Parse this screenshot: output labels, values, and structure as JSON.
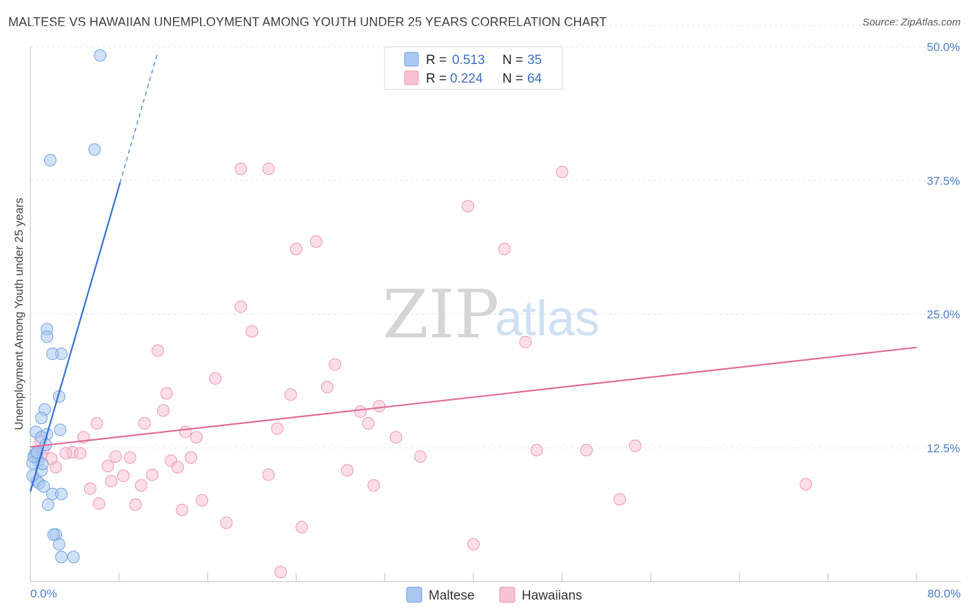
{
  "header": {
    "title": "MALTESE VS HAWAIIAN UNEMPLOYMENT AMONG YOUTH UNDER 25 YEARS CORRELATION CHART",
    "source": "Source: ZipAtlas.com"
  },
  "watermark": {
    "zip": "ZIP",
    "atlas": "atlas"
  },
  "colors": {
    "maltese_fill": "#a9c8f0",
    "maltese_stroke": "#6e9fe0",
    "maltese_line": "#2e6fd6",
    "hawaiians_fill": "#f7c2d2",
    "hawaiians_stroke": "#eb95b3",
    "hawaiians_line": "#e06b96",
    "grid": "#e3e3e3",
    "axis_text": "#4a7cc9"
  },
  "legend": {
    "r_label": "R =",
    "n_label": "N =",
    "maltese": {
      "r": "0.513",
      "n": "35"
    },
    "hawaiians": {
      "r": "0.224",
      "n": "64"
    }
  },
  "bottom_legend": {
    "maltese": "Maltese",
    "hawaiians": "Hawaiians"
  },
  "chart_data": {
    "type": "scatter",
    "title": "MALTESE VS HAWAIIAN UNEMPLOYMENT AMONG YOUTH UNDER 25 YEARS CORRELATION CHART",
    "xlabel": "",
    "ylabel": "Unemployment Among Youth under 25 years",
    "xlim": [
      0,
      80
    ],
    "ylim": [
      0,
      52
    ],
    "x_tick_labels": [
      "0.0%",
      "80.0%"
    ],
    "y_ticks": [
      12.5,
      25.0,
      37.5,
      50.0
    ],
    "y_tick_labels": [
      "12.5%",
      "25.0%",
      "37.5%",
      "50.0%"
    ],
    "grid": true,
    "legend_position": "top-center",
    "series": [
      {
        "name": "Maltese",
        "r": 0.513,
        "n": 35,
        "trend": {
          "x0": 0.0,
          "y0": 8.4,
          "x1": 8.1,
          "y1": 37.3,
          "dash_x1": 11.5,
          "dash_y1": 49.5
        },
        "points": [
          [
            6.3,
            49.2
          ],
          [
            5.8,
            40.4
          ],
          [
            1.8,
            39.4
          ],
          [
            1.5,
            23.6
          ],
          [
            1.5,
            22.9
          ],
          [
            2.8,
            21.3
          ],
          [
            2.0,
            21.3
          ],
          [
            2.6,
            17.3
          ],
          [
            1.3,
            16.1
          ],
          [
            1.0,
            15.3
          ],
          [
            2.7,
            14.2
          ],
          [
            0.5,
            14.0
          ],
          [
            1.5,
            13.8
          ],
          [
            1.0,
            13.5
          ],
          [
            1.4,
            12.8
          ],
          [
            0.5,
            12.0
          ],
          [
            0.4,
            11.9
          ],
          [
            0.7,
            11.3
          ],
          [
            0.2,
            11.1
          ],
          [
            1.0,
            10.4
          ],
          [
            0.6,
            9.4
          ],
          [
            0.8,
            9.2
          ],
          [
            1.2,
            8.9
          ],
          [
            2.0,
            8.2
          ],
          [
            2.8,
            8.2
          ],
          [
            1.6,
            7.2
          ],
          [
            2.3,
            4.4
          ],
          [
            2.1,
            4.4
          ],
          [
            2.6,
            3.5
          ],
          [
            2.8,
            2.3
          ],
          [
            3.9,
            2.3
          ],
          [
            0.3,
            11.7
          ],
          [
            0.2,
            9.9
          ],
          [
            0.6,
            12.1
          ],
          [
            1.1,
            11.0
          ]
        ]
      },
      {
        "name": "Hawaiians",
        "r": 0.224,
        "n": 64,
        "trend": {
          "x0": 0.0,
          "y0": 12.6,
          "x1": 80.0,
          "y1": 21.9
        },
        "points": [
          [
            19.0,
            38.6
          ],
          [
            21.5,
            38.6
          ],
          [
            48.0,
            38.3
          ],
          [
            39.5,
            35.1
          ],
          [
            25.8,
            31.8
          ],
          [
            24.0,
            31.1
          ],
          [
            42.8,
            31.1
          ],
          [
            19.0,
            25.7
          ],
          [
            20.0,
            23.4
          ],
          [
            44.7,
            22.4
          ],
          [
            11.5,
            21.6
          ],
          [
            27.5,
            20.3
          ],
          [
            16.7,
            19.0
          ],
          [
            26.8,
            18.2
          ],
          [
            12.3,
            17.6
          ],
          [
            23.5,
            17.5
          ],
          [
            31.5,
            16.4
          ],
          [
            12.0,
            16.0
          ],
          [
            29.8,
            15.9
          ],
          [
            10.3,
            14.8
          ],
          [
            6.0,
            14.8
          ],
          [
            30.5,
            14.8
          ],
          [
            22.3,
            14.3
          ],
          [
            14.0,
            14.0
          ],
          [
            4.8,
            13.5
          ],
          [
            15.0,
            13.5
          ],
          [
            33.0,
            13.5
          ],
          [
            0.9,
            13.2
          ],
          [
            1.2,
            12.4
          ],
          [
            54.6,
            12.7
          ],
          [
            45.7,
            12.3
          ],
          [
            50.2,
            12.3
          ],
          [
            3.8,
            12.1
          ],
          [
            4.5,
            12.0
          ],
          [
            3.2,
            12.0
          ],
          [
            35.2,
            11.7
          ],
          [
            7.7,
            11.7
          ],
          [
            9.0,
            11.6
          ],
          [
            12.7,
            11.3
          ],
          [
            14.5,
            11.6
          ],
          [
            7.0,
            10.8
          ],
          [
            2.3,
            10.7
          ],
          [
            13.3,
            10.7
          ],
          [
            28.6,
            10.4
          ],
          [
            11.0,
            10.0
          ],
          [
            21.5,
            10.0
          ],
          [
            8.4,
            9.9
          ],
          [
            7.3,
            9.4
          ],
          [
            70.0,
            9.1
          ],
          [
            10.0,
            9.0
          ],
          [
            31.0,
            9.0
          ],
          [
            5.4,
            8.7
          ],
          [
            53.2,
            7.7
          ],
          [
            15.5,
            7.6
          ],
          [
            6.2,
            7.3
          ],
          [
            9.5,
            7.2
          ],
          [
            13.7,
            6.7
          ],
          [
            17.7,
            5.5
          ],
          [
            24.5,
            5.1
          ],
          [
            40.0,
            3.5
          ],
          [
            22.6,
            0.9
          ],
          [
            0.6,
            11.6
          ],
          [
            1.9,
            11.5
          ],
          [
            1.0,
            11.8
          ]
        ]
      }
    ]
  }
}
